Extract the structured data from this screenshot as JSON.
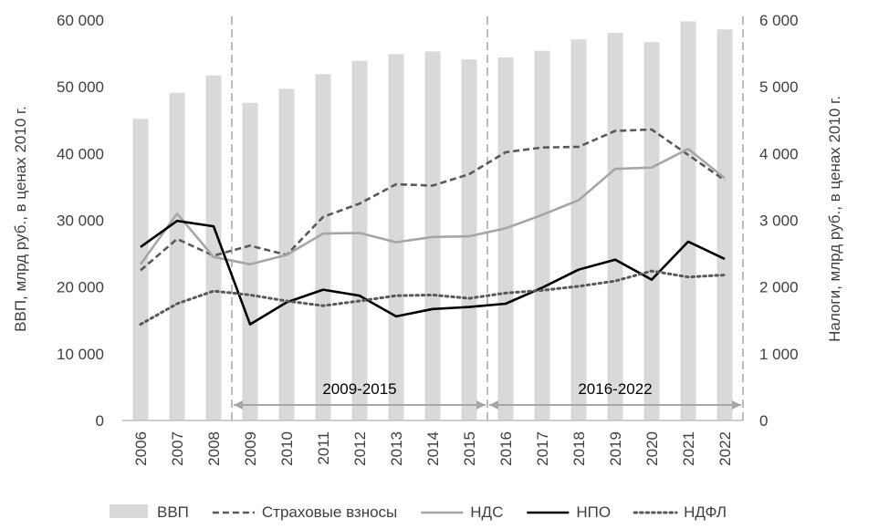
{
  "chart_data": {
    "type": "bar+line",
    "categories": [
      "2006",
      "2007",
      "2008",
      "2009",
      "2010",
      "2011",
      "2012",
      "2013",
      "2014",
      "2015",
      "2016",
      "2017",
      "2018",
      "2019",
      "2020",
      "2021",
      "2022"
    ],
    "bar_series": {
      "name": "ВВП",
      "axis": "left",
      "color": "#d9d9d9",
      "values": [
        45200,
        49100,
        51700,
        47600,
        49700,
        51900,
        53900,
        54900,
        55300,
        54100,
        54400,
        55400,
        57100,
        58100,
        56700,
        59800,
        58600
      ]
    },
    "line_series": [
      {
        "name": "Страховые взносы",
        "axis": "right",
        "style": "dashed",
        "color": "#595959",
        "values": [
          2250,
          2720,
          2470,
          2620,
          2480,
          3050,
          3250,
          3540,
          3520,
          3690,
          4020,
          4090,
          4100,
          4340,
          4360,
          3980,
          3600
        ]
      },
      {
        "name": "НДС",
        "axis": "right",
        "style": "solid",
        "color": "#a6a6a6",
        "values": [
          2340,
          3100,
          2450,
          2340,
          2480,
          2800,
          2810,
          2670,
          2750,
          2760,
          2880,
          3080,
          3300,
          3770,
          3790,
          4070,
          3630
        ]
      },
      {
        "name": "НПО",
        "axis": "right",
        "style": "solid",
        "color": "#000000",
        "values": [
          2600,
          2990,
          2910,
          1440,
          1770,
          1960,
          1870,
          1560,
          1670,
          1700,
          1750,
          1990,
          2260,
          2410,
          2110,
          2680,
          2420
        ]
      },
      {
        "name": "НДФЛ",
        "axis": "right",
        "style": "dotted",
        "color": "#595959",
        "values": [
          1440,
          1750,
          1940,
          1880,
          1790,
          1720,
          1790,
          1870,
          1880,
          1830,
          1910,
          1950,
          2010,
          2090,
          2240,
          2150,
          2180
        ]
      }
    ],
    "y_left": {
      "label": "ВВП, млрд руб., в ценах 2010 г.",
      "ylim": [
        0,
        60000
      ],
      "ticks": [
        "0",
        "10 000",
        "20 000",
        "30 000",
        "40 000",
        "50 000",
        "60 000"
      ]
    },
    "y_right": {
      "label": "Налоги, млрд руб., в ценах 2010 г.",
      "ylim": [
        0,
        6000
      ],
      "ticks": [
        "0",
        "1 000",
        "2 000",
        "3 000",
        "4 000",
        "5 000",
        "6 000"
      ]
    },
    "periods": [
      {
        "label": "2009-2015",
        "from": "2009",
        "to": "2015"
      },
      {
        "label": "2016-2022",
        "from": "2016",
        "to": "2022"
      }
    ],
    "legend_position": "bottom",
    "grid": false
  }
}
